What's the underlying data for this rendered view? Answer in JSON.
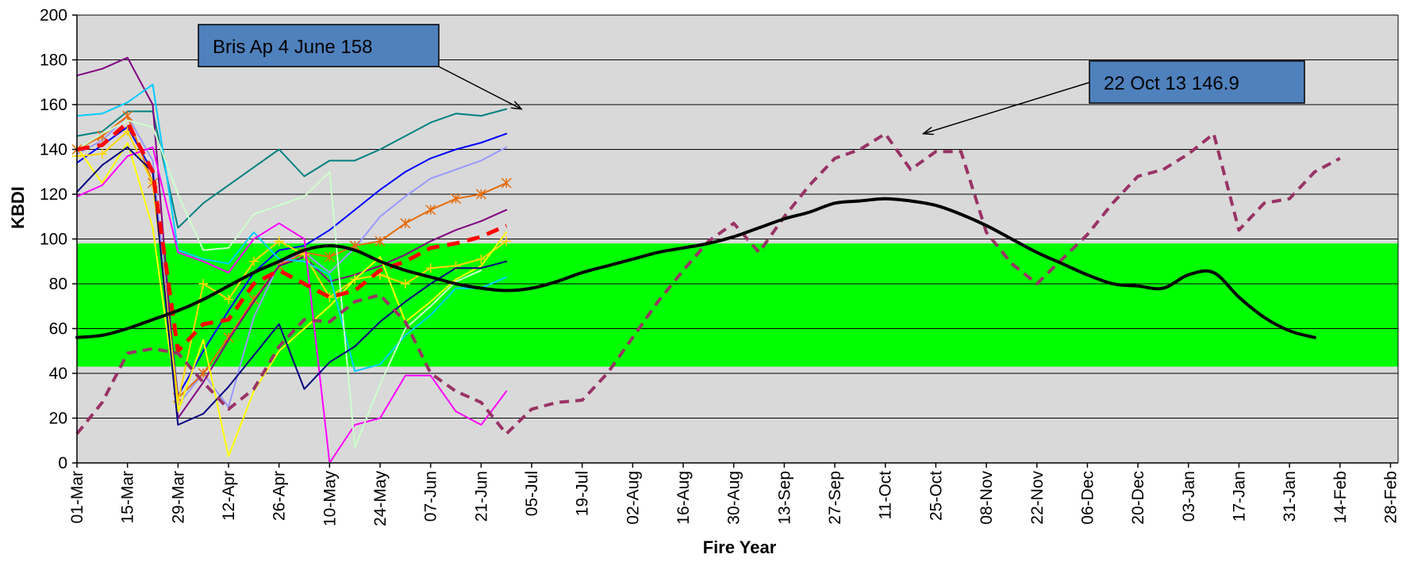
{
  "chart_data": {
    "type": "line",
    "xlabel": "Fire Year",
    "ylabel": "KBDI",
    "ylim": [
      0,
      200
    ],
    "yticks": [
      0,
      20,
      40,
      60,
      80,
      100,
      120,
      140,
      160,
      180,
      200
    ],
    "x_tick_labels": [
      "01-Mar",
      "15-Mar",
      "29-Mar",
      "12-Apr",
      "26-Apr",
      "10-May",
      "24-May",
      "07-Jun",
      "21-Jun",
      "05-Jul",
      "19-Jul",
      "02-Aug",
      "16-Aug",
      "30-Aug",
      "13-Sep",
      "27-Sep",
      "11-Oct",
      "25-Oct",
      "08-Nov",
      "22-Nov",
      "06-Dec",
      "20-Dec",
      "03-Jan",
      "17-Jan",
      "31-Jan",
      "14-Feb",
      "28-Feb"
    ],
    "x_unit": "week index (0 = 01-Mar, 2 = 15-Mar, ...)",
    "xlim": [
      0,
      52.3
    ],
    "band": {
      "from": 43,
      "to": 98,
      "color": "#00ff00"
    },
    "plot_background": "#d9d9d9",
    "grid": true,
    "annotations": [
      {
        "text": "Bris Ap 4 June 158",
        "points_to": [
          17.6,
          158
        ]
      },
      {
        "text": "22 Oct 13  146.9",
        "points_to": [
          33.5,
          147
        ]
      }
    ],
    "series": [
      {
        "color": "#000000",
        "width": 4,
        "dash": "",
        "smooth": true,
        "x": [
          0,
          1,
          2,
          3,
          4,
          5,
          6,
          7,
          8,
          9,
          10,
          11,
          12,
          13,
          14,
          15,
          16,
          17,
          18,
          19,
          20,
          21,
          22,
          23,
          24,
          25,
          26,
          27,
          28,
          29,
          30,
          31,
          32,
          33,
          34,
          35,
          36,
          37,
          38,
          39,
          40,
          41,
          42,
          43,
          44,
          45,
          46,
          47,
          48,
          49,
          50,
          51,
          52
        ],
        "y": [
          56,
          57,
          60,
          64,
          68,
          73,
          79,
          85,
          90,
          95,
          97,
          95,
          90,
          86,
          83,
          80,
          78,
          77,
          78,
          81,
          85,
          88,
          91,
          94,
          96,
          98,
          101,
          105,
          109,
          112,
          116,
          117,
          118,
          117,
          115,
          111,
          106,
          100,
          94,
          89,
          84,
          80,
          79,
          78,
          84,
          85,
          74,
          65,
          59,
          56,
          null,
          null,
          null
        ]
      },
      {
        "color": "#993366",
        "width": 4,
        "dash": "12 8",
        "smooth": false,
        "x": [
          0,
          1,
          2,
          3,
          4,
          5,
          6,
          7,
          8,
          9,
          10,
          11,
          12,
          13,
          14,
          15,
          16,
          17,
          18,
          19,
          20,
          21,
          22,
          23,
          24,
          25,
          26,
          27,
          28,
          29,
          30,
          31,
          32,
          33,
          34,
          35,
          36,
          37,
          38,
          39,
          40,
          41,
          42,
          43,
          44,
          45,
          46,
          47,
          48,
          49,
          50,
          51,
          52
        ],
        "y": [
          13,
          27,
          49,
          51,
          49,
          36,
          24,
          33,
          52,
          64,
          63,
          72,
          75,
          63,
          40,
          32,
          27,
          13,
          24,
          27,
          28,
          40,
          56,
          72,
          86,
          99,
          107,
          94,
          110,
          124,
          136,
          140,
          147,
          131,
          139,
          139,
          103,
          89,
          80,
          91,
          102,
          116,
          128,
          131,
          138,
          147,
          104,
          116,
          118,
          130,
          136,
          null,
          null
        ]
      },
      {
        "color": "#ff0000",
        "width": 5,
        "dash": "16 10",
        "smooth": false,
        "x": [
          0,
          1,
          2,
          3,
          4,
          5,
          6,
          7,
          8,
          9,
          10,
          11,
          12,
          13,
          14,
          15,
          16,
          17
        ],
        "y": [
          140,
          142,
          152,
          130,
          50,
          62,
          64,
          80,
          86,
          80,
          74,
          77,
          86,
          90,
          96,
          98,
          101,
          106
        ]
      },
      {
        "color": "#008080",
        "width": 2,
        "dash": "",
        "smooth": false,
        "x": [
          0,
          1,
          2,
          3,
          4,
          5,
          6,
          7,
          8,
          9,
          10,
          11,
          12,
          13,
          14,
          15,
          16,
          17
        ],
        "y": [
          146,
          148,
          157,
          157,
          105,
          116,
          124,
          132,
          140,
          128,
          135,
          135,
          140,
          146,
          152,
          156,
          155,
          158
        ]
      },
      {
        "color": "#0000ff",
        "width": 2,
        "dash": "",
        "smooth": false,
        "x": [
          0,
          1,
          2,
          3,
          4,
          5,
          6,
          7,
          8,
          9,
          10,
          11,
          12,
          13,
          14,
          15,
          16,
          17
        ],
        "y": [
          134,
          142,
          150,
          130,
          30,
          50,
          68,
          85,
          95,
          97,
          104,
          113,
          122,
          130,
          136,
          140,
          143,
          147
        ]
      },
      {
        "color": "#9999ff",
        "width": 2,
        "dash": "",
        "smooth": false,
        "x": [
          0,
          1,
          2,
          3,
          4,
          5,
          6,
          7,
          8,
          9,
          10,
          11,
          12,
          13,
          14,
          15,
          16,
          17
        ],
        "y": [
          138,
          144,
          155,
          135,
          26,
          40,
          25,
          65,
          89,
          94,
          85,
          96,
          110,
          119,
          127,
          131,
          135,
          141
        ]
      },
      {
        "color": "#e46c0a",
        "width": 2,
        "dash": "",
        "smooth": false,
        "marker": "asterisk",
        "x": [
          0,
          1,
          2,
          3,
          4,
          5,
          6,
          7,
          8,
          9,
          10,
          11,
          12,
          13,
          14,
          15,
          16,
          17
        ],
        "y": [
          140,
          146,
          155,
          125,
          29,
          40,
          56,
          73,
          88,
          94,
          92,
          97,
          99,
          107,
          113,
          118,
          120,
          125
        ]
      },
      {
        "color": "#800080",
        "width": 2,
        "dash": "",
        "smooth": false,
        "x": [
          0,
          1,
          2,
          3,
          4,
          5,
          6,
          7,
          8,
          9,
          10,
          11,
          12,
          13,
          14,
          15,
          16,
          17
        ],
        "y": [
          173,
          176,
          181,
          160,
          20,
          36,
          55,
          72,
          88,
          92,
          81,
          84,
          88,
          93,
          99,
          104,
          108,
          113
        ]
      },
      {
        "color": "#ffd700",
        "width": 2,
        "dash": "",
        "smooth": false,
        "marker": "plus",
        "x": [
          0,
          1,
          2,
          3,
          4,
          5,
          6,
          7,
          8,
          9,
          10,
          11,
          12,
          13,
          14,
          15,
          16,
          17
        ],
        "y": [
          137,
          138,
          148,
          125,
          27,
          80,
          73,
          90,
          99,
          93,
          74,
          82,
          84,
          80,
          87,
          88,
          91,
          99
        ]
      },
      {
        "color": "#ffff00",
        "width": 2,
        "dash": "",
        "smooth": false,
        "x": [
          0,
          1,
          2,
          3,
          4,
          5,
          6,
          7,
          8,
          9,
          10,
          11,
          12,
          13,
          14,
          15,
          16,
          17
        ],
        "y": [
          141,
          125,
          143,
          105,
          23,
          55,
          3,
          32,
          50,
          60,
          70,
          82,
          92,
          63,
          72,
          82,
          88,
          103
        ]
      },
      {
        "color": "#00ccff",
        "width": 2,
        "dash": "",
        "smooth": false,
        "x": [
          0,
          1,
          2,
          3,
          4,
          5,
          6,
          7,
          8,
          9,
          10,
          11,
          12,
          13,
          14,
          15,
          16,
          17
        ],
        "y": [
          155,
          156,
          161,
          169,
          95,
          91,
          89,
          103,
          91,
          90,
          84,
          41,
          44,
          57,
          66,
          78,
          78,
          83
        ]
      },
      {
        "color": "#ff00ff",
        "width": 2,
        "dash": "",
        "smooth": false,
        "x": [
          0,
          1,
          2,
          3,
          4,
          5,
          6,
          7,
          8,
          9,
          10,
          11,
          12,
          13,
          14,
          15,
          16,
          17
        ],
        "y": [
          119,
          124,
          137,
          141,
          94,
          90,
          85,
          100,
          107,
          100,
          0,
          17,
          20,
          39,
          39,
          23,
          17,
          32
        ]
      },
      {
        "color": "#ccffcc",
        "width": 2,
        "dash": "",
        "smooth": false,
        "x": [
          0,
          1,
          2,
          3,
          4,
          5,
          6,
          7,
          8,
          9,
          10,
          11,
          12,
          13,
          14,
          15,
          16,
          17
        ],
        "y": [
          140,
          147,
          153,
          150,
          120,
          95,
          96,
          111,
          115,
          119,
          130,
          7,
          35,
          60,
          70,
          81,
          86,
          null
        ]
      },
      {
        "color": "#000080",
        "width": 2,
        "dash": "",
        "smooth": false,
        "x": [
          0,
          1,
          2,
          3,
          4,
          5,
          6,
          7,
          8,
          9,
          10,
          11,
          12,
          13,
          14,
          15,
          16,
          17
        ],
        "y": [
          121,
          133,
          141,
          130,
          17,
          22,
          34,
          48,
          62,
          33,
          45,
          52,
          63,
          72,
          80,
          87,
          87,
          90
        ]
      }
    ]
  }
}
